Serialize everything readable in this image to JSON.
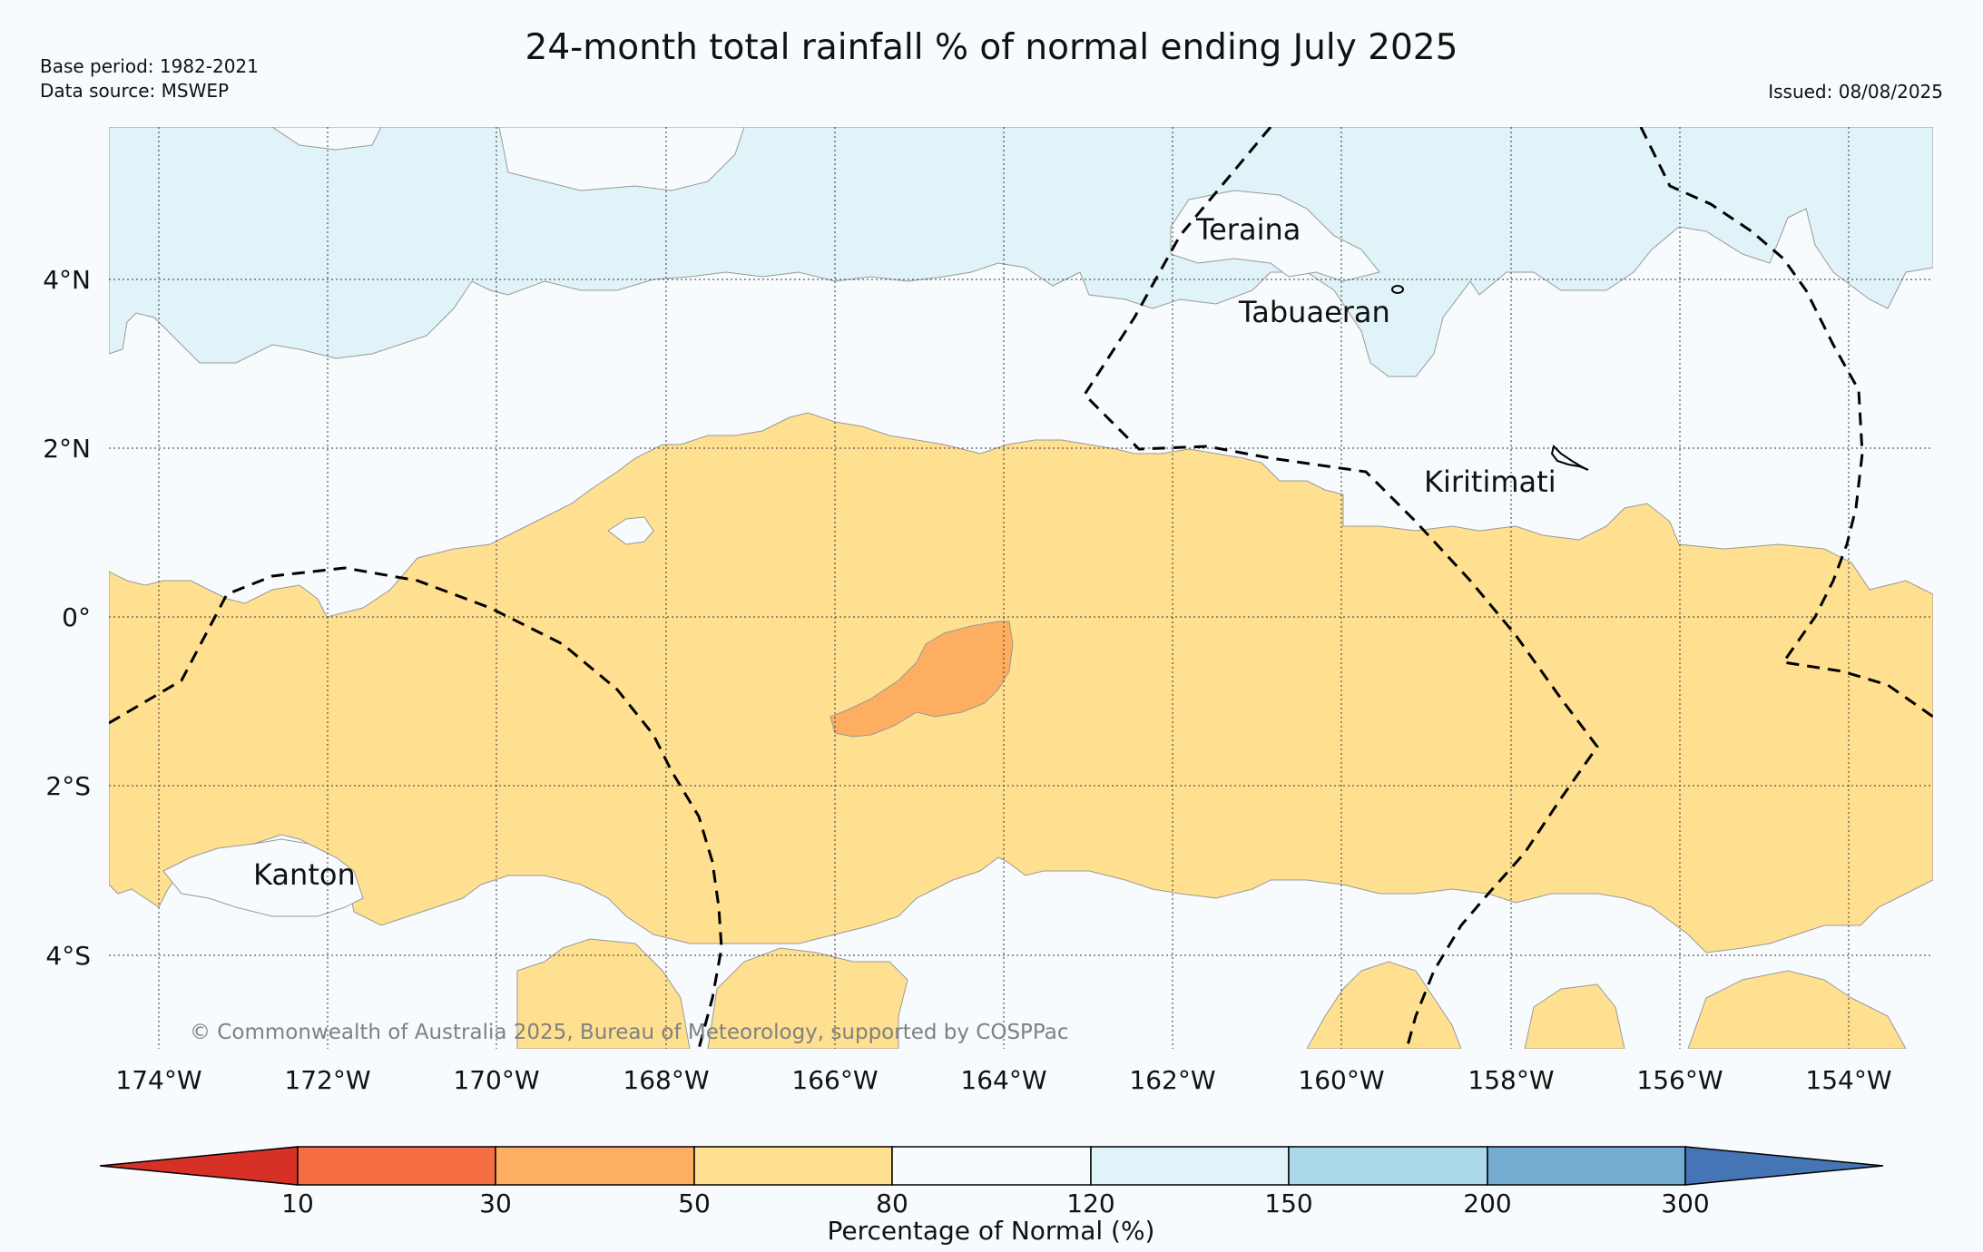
{
  "title": "24-month total rainfall % of normal ending July 2025",
  "meta": {
    "base_period": "Base period: 1982-2021",
    "data_source": "Data source: MSWEP",
    "issued": "Issued: 08/08/2025"
  },
  "copyright": "© Commonwealth of Australia 2025, Bureau of Meteorology, supported by COSPPac",
  "places": {
    "teraina": "Teraina",
    "tabuaeran": "Tabuaeran",
    "kiritimati": "Kiritimati",
    "kanton": "Kanton"
  },
  "axes": {
    "lon_labels": [
      "174°W",
      "172°W",
      "170°W",
      "168°W",
      "166°W",
      "164°W",
      "162°W",
      "160°W",
      "158°W",
      "156°W",
      "154°W"
    ],
    "lat_labels": [
      "4°N",
      "2°N",
      "0°",
      "2°S",
      "4°S"
    ]
  },
  "colorbar": {
    "title": "Percentage of Normal (%)",
    "ticks": [
      "10",
      "30",
      "50",
      "80",
      "120",
      "150",
      "200",
      "300"
    ],
    "colors": [
      "#d73027",
      "#f46d43",
      "#fdae61",
      "#fee090",
      "#f7fbfd",
      "#e0f3f8",
      "#abd9e9",
      "#74add1",
      "#4575b4"
    ]
  },
  "legend_colors": {
    "very_wet": "#e0f3f8",
    "near_normal": "#f7fbfd",
    "dry": "#fee090",
    "very_dry": "#fdae61"
  }
}
